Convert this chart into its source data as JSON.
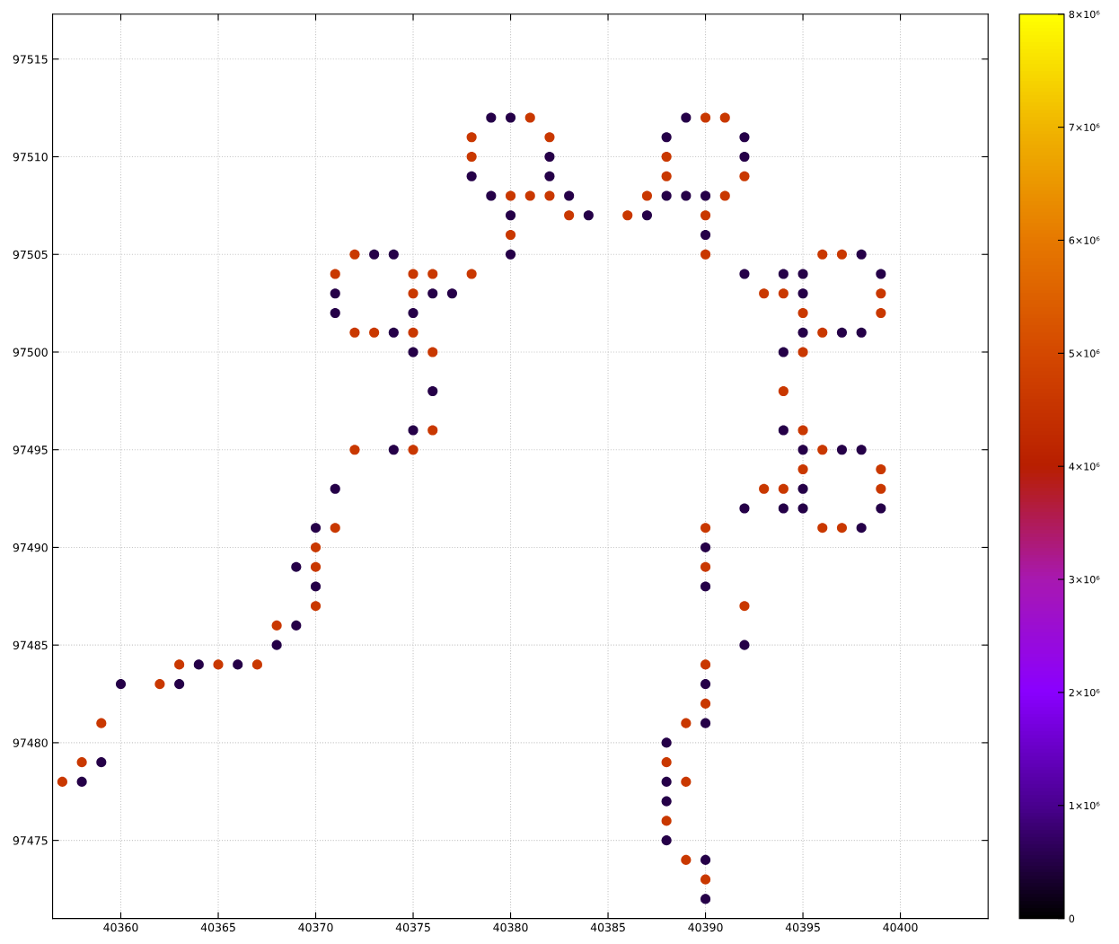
{
  "chart_data": {
    "type": "scatter",
    "xlim": [
      40356.5,
      40404.5
    ],
    "ylim": [
      97471,
      97517.3
    ],
    "xticks": [
      40360,
      40365,
      40370,
      40375,
      40380,
      40385,
      40390,
      40395,
      40400
    ],
    "yticks": [
      97475,
      97480,
      97485,
      97490,
      97495,
      97500,
      97505,
      97510,
      97515
    ],
    "clim": [
      0,
      8000000
    ],
    "cticks": [
      0,
      {
        "value": 1000000,
        "label": "1×10⁶"
      },
      {
        "value": 2000000,
        "label": "2×10⁶"
      },
      {
        "value": 3000000,
        "label": "3×10⁶"
      },
      {
        "value": 4000000,
        "label": "4×10⁶"
      },
      {
        "value": 5000000,
        "label": "5×10⁶"
      },
      {
        "value": 6000000,
        "label": "6×10⁶"
      },
      {
        "value": 7000000,
        "label": "7×10⁶"
      },
      {
        "value": 8000000,
        "label": "8×10⁶"
      }
    ],
    "grid": true,
    "marker": "circle",
    "legend": false,
    "x": [
      40357,
      40358,
      40358,
      40359,
      40359,
      40360,
      40362,
      40363,
      40363,
      40364,
      40365,
      40366,
      40367,
      40368,
      40368,
      40369,
      40369,
      40370,
      40370,
      40370,
      40370,
      40370,
      40371,
      40371,
      40372,
      40374,
      40375,
      40375,
      40376,
      40376,
      40376,
      40375,
      40375,
      40375,
      40375,
      40375,
      40376,
      40376,
      40377,
      40378,
      40374,
      40373,
      40372,
      40371,
      40371,
      40371,
      40372,
      40373,
      40374,
      40380,
      40380,
      40380,
      40379,
      40380,
      40381,
      40382,
      40383,
      40383,
      40384,
      40382,
      40382,
      40382,
      40381,
      40380,
      40379,
      40378,
      40378,
      40378,
      40386,
      40387,
      40387,
      40388,
      40389,
      40390,
      40391,
      40388,
      40388,
      40388,
      40389,
      40390,
      40391,
      40392,
      40392,
      40392,
      40390,
      40390,
      40390,
      40392,
      40393,
      40394,
      40394,
      40395,
      40395,
      40395,
      40395,
      40395,
      40394,
      40394,
      40394,
      40395,
      40395,
      40396,
      40397,
      40398,
      40399,
      40399,
      40399,
      40398,
      40397,
      40396,
      40395,
      40395,
      40395,
      40394,
      40393,
      40394,
      40392,
      40396,
      40397,
      40398,
      40399,
      40399,
      40399,
      40398,
      40397,
      40396,
      40390,
      40390,
      40390,
      40390,
      40392,
      40392,
      40390,
      40390,
      40390,
      40390,
      40389,
      40388,
      40388,
      40388,
      40389,
      40388,
      40388,
      40388,
      40389,
      40390,
      40390,
      40390
    ],
    "values": [
      97478,
      97478,
      97479,
      97479,
      97481,
      97483,
      97483,
      97483,
      97484,
      97484,
      97484,
      97484,
      97484,
      97485,
      97486,
      97486,
      97489,
      97487,
      97488,
      97489,
      97490,
      97491,
      97491,
      97493,
      97495,
      97495,
      97495,
      97496,
      97496,
      97498,
      97500,
      97500,
      97501,
      97502,
      97503,
      97504,
      97504,
      97503,
      97503,
      97504,
      97501,
      97501,
      97501,
      97502,
      97503,
      97504,
      97505,
      97505,
      97505,
      97505,
      97506,
      97507,
      97508,
      97508,
      97508,
      97508,
      97508,
      97507,
      97507,
      97509,
      97510,
      97511,
      97512,
      97512,
      97512,
      97511,
      97510,
      97509,
      97507,
      97507,
      97508,
      97508,
      97508,
      97508,
      97508,
      97509,
      97510,
      97511,
      97512,
      97512,
      97512,
      97511,
      97510,
      97509,
      97507,
      97506,
      97505,
      97504,
      97503,
      97503,
      97504,
      97504,
      97503,
      97502,
      97501,
      97500,
      97500,
      97498,
      97496,
      97496,
      97495,
      97495,
      97495,
      97495,
      97494,
      97493,
      97492,
      97491,
      97491,
      97491,
      97492,
      97493,
      97494,
      97493,
      97493,
      97492,
      97492,
      97501,
      97501,
      97501,
      97502,
      97503,
      97504,
      97505,
      97505,
      97505,
      97491,
      97490,
      97489,
      97488,
      97487,
      97485,
      97484,
      97483,
      97482,
      97481,
      97481,
      97480,
      97479,
      97478,
      97478,
      97477,
      97476,
      97475,
      97474,
      97474,
      97473,
      97472
    ],
    "cvalues": [
      4600000,
      500000,
      4600000,
      500000,
      4600000,
      500000,
      4600000,
      500000,
      4600000,
      500000,
      4600000,
      500000,
      4600000,
      500000,
      4600000,
      500000,
      500000,
      4600000,
      500000,
      4600000,
      4600000,
      500000,
      4600000,
      500000,
      4600000,
      500000,
      4600000,
      500000,
      4600000,
      500000,
      4600000,
      500000,
      4600000,
      500000,
      4600000,
      4600000,
      4600000,
      500000,
      500000,
      4600000,
      500000,
      4600000,
      4600000,
      500000,
      500000,
      4600000,
      4600000,
      500000,
      500000,
      500000,
      4600000,
      500000,
      500000,
      4600000,
      4600000,
      4600000,
      500000,
      4600000,
      500000,
      500000,
      500000,
      4600000,
      4600000,
      500000,
      500000,
      4600000,
      4600000,
      500000,
      4600000,
      500000,
      4600000,
      500000,
      500000,
      500000,
      4600000,
      4600000,
      4600000,
      500000,
      500000,
      4600000,
      4600000,
      500000,
      500000,
      4600000,
      4600000,
      500000,
      4600000,
      500000,
      4600000,
      4600000,
      500000,
      500000,
      500000,
      4600000,
      500000,
      4600000,
      500000,
      4600000,
      500000,
      4600000,
      500000,
      4600000,
      500000,
      500000,
      4600000,
      4600000,
      500000,
      500000,
      4600000,
      4600000,
      500000,
      500000,
      4600000,
      4600000,
      4600000,
      500000,
      500000,
      4600000,
      500000,
      500000,
      4600000,
      4600000,
      500000,
      500000,
      4600000,
      4600000,
      4600000,
      500000,
      4600000,
      500000,
      4600000,
      500000,
      4600000,
      500000,
      4600000,
      500000,
      4600000,
      500000,
      4600000,
      500000,
      4600000,
      500000,
      4600000,
      500000,
      4600000,
      500000,
      4600000,
      500000
    ]
  }
}
